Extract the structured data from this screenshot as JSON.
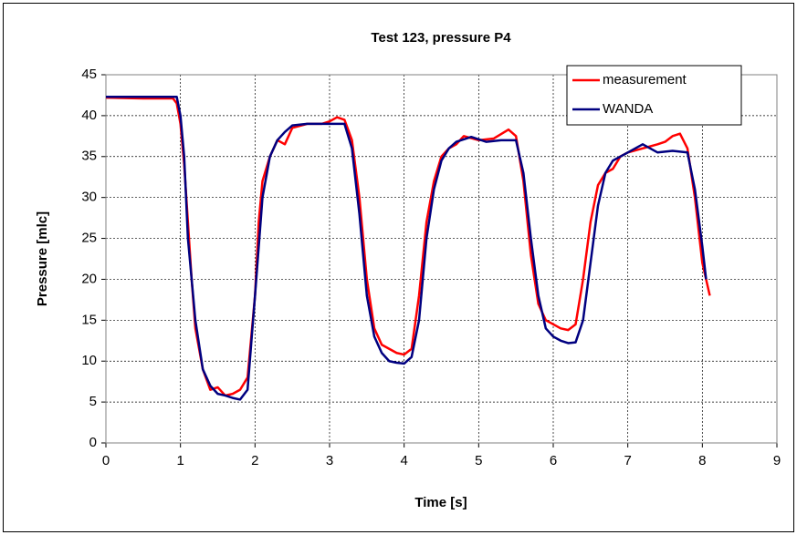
{
  "chart_data": {
    "type": "line",
    "title": "Test 123, pressure P4",
    "xlabel": "Time [s]",
    "ylabel": "Pressure [mlc]",
    "xlim": [
      0,
      9
    ],
    "xticks": [
      0,
      1,
      2,
      3,
      4,
      5,
      6,
      7,
      8,
      9
    ],
    "ylim": [
      0,
      45
    ],
    "yticks": [
      0,
      5,
      10,
      15,
      20,
      25,
      30,
      35,
      40,
      45
    ],
    "grid": true,
    "legend": "upper right",
    "series": [
      {
        "name": "measurement",
        "color": "#ff0000",
        "x": [
          0,
          0.5,
          0.9,
          0.95,
          1.0,
          1.05,
          1.1,
          1.15,
          1.2,
          1.3,
          1.4,
          1.5,
          1.6,
          1.7,
          1.8,
          1.9,
          2.0,
          2.05,
          2.1,
          2.2,
          2.3,
          2.4,
          2.5,
          2.7,
          2.9,
          3.0,
          3.1,
          3.2,
          3.3,
          3.4,
          3.5,
          3.6,
          3.7,
          3.8,
          3.9,
          4.0,
          4.1,
          4.2,
          4.3,
          4.4,
          4.5,
          4.6,
          4.7,
          4.8,
          5.0,
          5.2,
          5.4,
          5.5,
          5.6,
          5.7,
          5.8,
          5.9,
          6.0,
          6.1,
          6.2,
          6.3,
          6.4,
          6.5,
          6.6,
          6.7,
          6.8,
          6.9,
          7.0,
          7.2,
          7.4,
          7.5,
          7.6,
          7.7,
          7.8,
          7.9,
          8.0,
          8.1
        ],
        "values": [
          42.2,
          42.1,
          42.1,
          41.5,
          39,
          34,
          27,
          20,
          14,
          9,
          6.5,
          6.8,
          5.8,
          6,
          6.5,
          8,
          18,
          27,
          32,
          35,
          37,
          36.5,
          38.5,
          39,
          39,
          39.3,
          39.8,
          39.5,
          37,
          30,
          20,
          14,
          12,
          11.5,
          11,
          10.8,
          11.5,
          18,
          27,
          32,
          35,
          36,
          36.5,
          37.5,
          37,
          37.2,
          38.3,
          37.5,
          32,
          23,
          17,
          15,
          14.5,
          14,
          13.8,
          14.5,
          20,
          27,
          31.5,
          33,
          33.5,
          35,
          35.5,
          36,
          36.5,
          36.8,
          37.5,
          37.8,
          36,
          30,
          22,
          18
        ]
      },
      {
        "name": "WANDA",
        "color": "#000080",
        "x": [
          0,
          0.95,
          1.0,
          1.05,
          1.1,
          1.2,
          1.3,
          1.4,
          1.5,
          1.6,
          1.7,
          1.8,
          1.9,
          2.0,
          2.1,
          2.2,
          2.3,
          2.4,
          2.5,
          2.7,
          3.0,
          3.2,
          3.3,
          3.4,
          3.5,
          3.6,
          3.7,
          3.8,
          3.9,
          4.0,
          4.1,
          4.2,
          4.3,
          4.4,
          4.5,
          4.6,
          4.7,
          4.9,
          5.1,
          5.3,
          5.5,
          5.6,
          5.7,
          5.8,
          5.9,
          6.0,
          6.1,
          6.2,
          6.3,
          6.4,
          6.5,
          6.6,
          6.7,
          6.8,
          7.0,
          7.2,
          7.4,
          7.6,
          7.8,
          7.9,
          8.0,
          8.05
        ],
        "values": [
          42.3,
          42.3,
          40,
          35,
          25,
          15,
          9,
          7,
          6,
          5.8,
          5.5,
          5.3,
          6.5,
          18,
          30,
          35,
          37,
          38,
          38.8,
          39,
          39,
          39,
          36,
          28,
          18,
          13,
          11,
          10,
          9.8,
          9.7,
          10.5,
          15,
          25,
          31,
          34.5,
          36,
          36.8,
          37.4,
          36.8,
          37,
          37,
          33,
          25,
          18,
          14,
          13,
          12.5,
          12.2,
          12.3,
          15,
          22,
          29,
          33,
          34.5,
          35.5,
          36.5,
          35.5,
          35.7,
          35.5,
          31,
          24,
          20
        ]
      }
    ]
  }
}
